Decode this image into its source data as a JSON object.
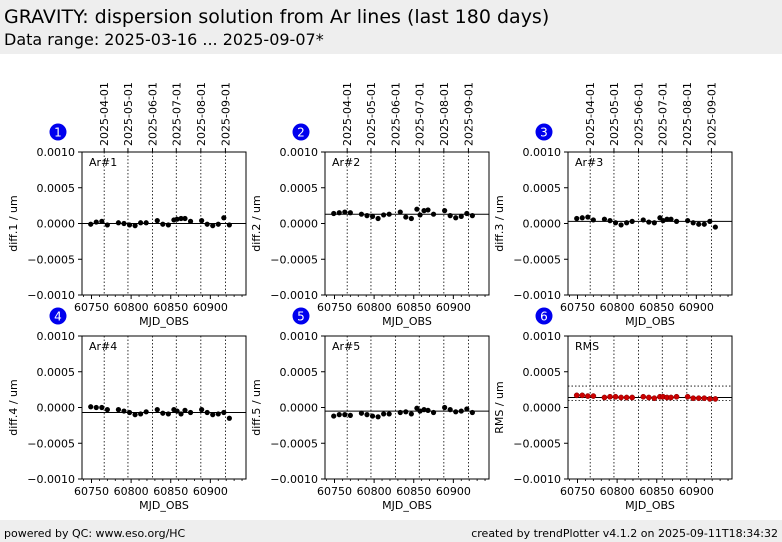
{
  "header": {
    "title": "GRAVITY: dispersion solution from Ar lines (last 180 days)",
    "subtitle": "Data range: 2025-03-16 ... 2025-09-07*"
  },
  "footer": {
    "left": "powered by QC: www.eso.org/HC",
    "right": "created by trendPlotter v4.1.2 on 2025-09-11T18:34:32"
  },
  "colors": {
    "points": "#000000",
    "rms_points": "#cc0000",
    "badge": "#0000ee",
    "grid": "#000000"
  },
  "chart_data": {
    "type": "scatter",
    "x_label": "MJD_OBS",
    "x_ticks": [
      60750,
      60800,
      60850,
      60900
    ],
    "xlim": [
      60738,
      60945
    ],
    "date_ticks": [
      {
        "mjd": 60766,
        "label": "2025-04-01"
      },
      {
        "mjd": 60796,
        "label": "2025-05-01"
      },
      {
        "mjd": 60827,
        "label": "2025-06-01"
      },
      {
        "mjd": 60857,
        "label": "2025-07-01"
      },
      {
        "mjd": 60888,
        "label": "2025-08-01"
      },
      {
        "mjd": 60919,
        "label": "2025-09-01"
      }
    ],
    "ylim": [
      -0.001,
      0.001
    ],
    "y_ticks": [
      -0.001,
      -0.0005,
      0.0,
      0.0005,
      0.001
    ],
    "y_tick_labels": [
      "−0.0010",
      "−0.0005",
      "0.0000",
      "0.0005",
      "0.0010"
    ],
    "x": [
      60749,
      60756,
      60763,
      60770,
      60784,
      60791,
      60798,
      60805,
      60812,
      60819,
      60833,
      60840,
      60847,
      60854,
      60858,
      60863,
      60868,
      60875,
      60889,
      60896,
      60903,
      60910,
      60917,
      60924
    ],
    "panels": [
      {
        "badge": "1",
        "label": "Ar#1",
        "ylabel": "diff.1 / um",
        "ref": 0.0,
        "y": [
          -1e-05,
          2e-05,
          3e-05,
          -2e-05,
          1e-05,
          0.0,
          -2e-05,
          -3e-05,
          1e-05,
          1e-05,
          4e-05,
          -1e-05,
          -2e-05,
          5e-05,
          6e-05,
          7e-05,
          7e-05,
          3e-05,
          4e-05,
          -1e-05,
          -3e-05,
          -1e-05,
          8e-05,
          -2e-05
        ]
      },
      {
        "badge": "2",
        "label": "Ar#2",
        "ylabel": "diff.2 / um",
        "ref": 0.00013,
        "y": [
          0.00014,
          0.00015,
          0.00016,
          0.00015,
          0.00013,
          0.00011,
          0.0001,
          7e-05,
          0.00012,
          0.00013,
          0.00016,
          9e-05,
          7e-05,
          0.0002,
          0.00012,
          0.00018,
          0.00019,
          0.00013,
          0.00018,
          0.00011,
          8e-05,
          0.0001,
          0.00014,
          0.00011
        ]
      },
      {
        "badge": "3",
        "label": "Ar#3",
        "ylabel": "diff.3 / um",
        "ref": 3e-05,
        "y": [
          7e-05,
          8e-05,
          9e-05,
          5e-05,
          6e-05,
          4e-05,
          1e-05,
          -2e-05,
          1e-05,
          3e-05,
          5e-05,
          2e-05,
          1e-05,
          8e-05,
          4e-05,
          6e-05,
          6e-05,
          3e-05,
          4e-05,
          1e-05,
          -1e-05,
          -1e-05,
          3e-05,
          -5e-05
        ]
      },
      {
        "badge": "4",
        "label": "Ar#4",
        "ylabel": "diff.4 / um",
        "ref": -7e-05,
        "y": [
          1e-05,
          0.0,
          0.0,
          -3e-05,
          -3e-05,
          -5e-05,
          -7e-05,
          -0.0001,
          -9e-05,
          -6e-05,
          -3e-05,
          -8e-05,
          -9e-05,
          -3e-05,
          -5e-05,
          -9e-05,
          -4e-05,
          -7e-05,
          -3e-05,
          -7e-05,
          -0.0001,
          -9e-05,
          -7e-05,
          -0.00015
        ]
      },
      {
        "badge": "5",
        "label": "Ar#5",
        "ylabel": "diff.5 / um",
        "ref": -5e-05,
        "y": [
          -0.00012,
          -0.0001,
          -0.0001,
          -0.00011,
          -8e-05,
          -0.0001,
          -0.00012,
          -0.00013,
          -9e-05,
          -9e-05,
          -7e-05,
          -6e-05,
          -9e-05,
          -1e-05,
          -5e-05,
          -3e-05,
          -4e-05,
          -7e-05,
          0.0,
          -3e-05,
          -6e-05,
          -5e-05,
          -2e-05,
          -7e-05
        ]
      },
      {
        "badge": "6",
        "label": "RMS",
        "ylabel": "RMS / um",
        "ref": 0.00014,
        "rms_band": [
          0.0001,
          0.0003
        ],
        "y": [
          0.00017,
          0.00017,
          0.00016,
          0.00016,
          0.00014,
          0.00015,
          0.00015,
          0.00014,
          0.00014,
          0.00014,
          0.00015,
          0.00014,
          0.00013,
          0.00015,
          0.00015,
          0.00014,
          0.00014,
          0.00015,
          0.00015,
          0.00013,
          0.00013,
          0.00013,
          0.00012,
          0.00012
        ]
      }
    ]
  }
}
